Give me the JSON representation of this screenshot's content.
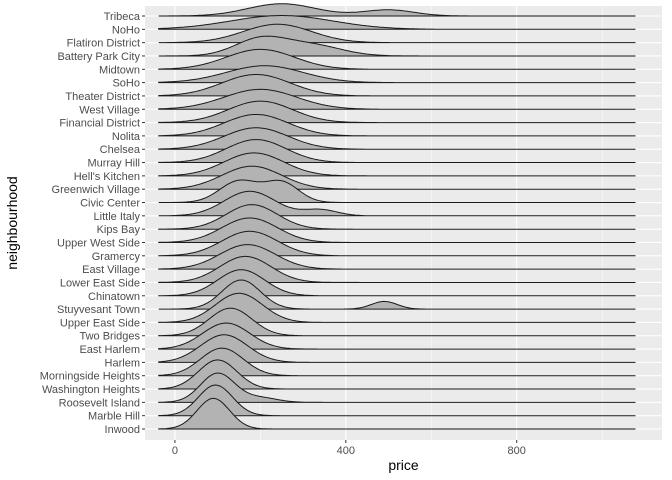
{
  "chart_data": {
    "type": "ridgeline",
    "xlabel": "price",
    "ylabel": "neighbourhood",
    "xlim": [
      -70,
      1140
    ],
    "x_ticks": [
      0,
      400,
      800
    ],
    "x_tick_labels": [
      "0",
      "400",
      "800"
    ],
    "grid": true,
    "theme": "grey panel, white gridlines",
    "fill_color": "#b3b3b3",
    "line_color": "#1a1a1a",
    "panel_color": "#ebebeb",
    "categories": [
      "Inwood",
      "Marble Hill",
      "Roosevelt Island",
      "Washington Heights",
      "Morningside Heights",
      "Harlem",
      "East Harlem",
      "Two Bridges",
      "Upper East Side",
      "Stuyvesant Town",
      "Chinatown",
      "Lower East Side",
      "East Village",
      "Gramercy",
      "Upper West Side",
      "Kips Bay",
      "Little Italy",
      "Civic Center",
      "Greenwich Village",
      "Hell's Kitchen",
      "Murray Hill",
      "Chelsea",
      "Nolita",
      "Financial District",
      "West Village",
      "Theater District",
      "SoHo",
      "Midtown",
      "Battery Park City",
      "Flatiron District",
      "NoHo",
      "Tribeca"
    ],
    "series": [
      {
        "name": "Inwood",
        "density": [
          {
            "mode": 90,
            "sd": 38,
            "h": 1.0
          }
        ]
      },
      {
        "name": "Marble Hill",
        "density": [
          {
            "mode": 95,
            "sd": 40,
            "h": 1.0
          }
        ]
      },
      {
        "name": "Roosevelt Island",
        "density": [
          {
            "mode": 100,
            "sd": 40,
            "h": 0.95
          },
          {
            "mode": 200,
            "sd": 40,
            "h": 0.15
          }
        ]
      },
      {
        "name": "Washington Heights",
        "density": [
          {
            "mode": 100,
            "sd": 45,
            "h": 0.95
          }
        ]
      },
      {
        "name": "Morningside Heights",
        "density": [
          {
            "mode": 110,
            "sd": 50,
            "h": 0.9
          }
        ]
      },
      {
        "name": "Harlem",
        "density": [
          {
            "mode": 115,
            "sd": 55,
            "h": 0.9
          }
        ]
      },
      {
        "name": "East Harlem",
        "density": [
          {
            "mode": 120,
            "sd": 55,
            "h": 0.85
          }
        ]
      },
      {
        "name": "Two Bridges",
        "density": [
          {
            "mode": 130,
            "sd": 50,
            "h": 0.9
          }
        ]
      },
      {
        "name": "Upper East Side",
        "density": [
          {
            "mode": 150,
            "sd": 55,
            "h": 0.95
          }
        ]
      },
      {
        "name": "Stuyvesant Town",
        "density": [
          {
            "mode": 155,
            "sd": 45,
            "h": 0.95
          },
          {
            "mode": 490,
            "sd": 30,
            "h": 0.25
          }
        ]
      },
      {
        "name": "Chinatown",
        "density": [
          {
            "mode": 155,
            "sd": 55,
            "h": 0.85
          }
        ]
      },
      {
        "name": "Lower East Side",
        "density": [
          {
            "mode": 165,
            "sd": 60,
            "h": 0.85
          }
        ]
      },
      {
        "name": "East Village",
        "density": [
          {
            "mode": 170,
            "sd": 65,
            "h": 0.8
          }
        ]
      },
      {
        "name": "Gramercy",
        "density": [
          {
            "mode": 175,
            "sd": 65,
            "h": 0.8
          }
        ]
      },
      {
        "name": "Upper West Side",
        "density": [
          {
            "mode": 175,
            "sd": 65,
            "h": 0.8
          }
        ]
      },
      {
        "name": "Kips Bay",
        "density": [
          {
            "mode": 180,
            "sd": 60,
            "h": 0.8
          }
        ]
      },
      {
        "name": "Little Italy",
        "density": [
          {
            "mode": 175,
            "sd": 60,
            "h": 0.8
          },
          {
            "mode": 340,
            "sd": 40,
            "h": 0.2
          }
        ]
      },
      {
        "name": "Civic Center",
        "density": [
          {
            "mode": 150,
            "sd": 45,
            "h": 0.7
          },
          {
            "mode": 250,
            "sd": 40,
            "h": 0.65
          }
        ]
      },
      {
        "name": "Greenwich Village",
        "density": [
          {
            "mode": 180,
            "sd": 70,
            "h": 0.75
          }
        ]
      },
      {
        "name": "Hell's Kitchen",
        "density": [
          {
            "mode": 185,
            "sd": 70,
            "h": 0.75
          }
        ]
      },
      {
        "name": "Murray Hill",
        "density": [
          {
            "mode": 190,
            "sd": 70,
            "h": 0.75
          }
        ]
      },
      {
        "name": "Chelsea",
        "density": [
          {
            "mode": 190,
            "sd": 75,
            "h": 0.7
          }
        ]
      },
      {
        "name": "Nolita",
        "density": [
          {
            "mode": 190,
            "sd": 75,
            "h": 0.7
          }
        ]
      },
      {
        "name": "Financial District",
        "density": [
          {
            "mode": 200,
            "sd": 75,
            "h": 0.7
          }
        ]
      },
      {
        "name": "West Village",
        "density": [
          {
            "mode": 200,
            "sd": 85,
            "h": 0.65
          }
        ]
      },
      {
        "name": "Theater District",
        "density": [
          {
            "mode": 190,
            "sd": 80,
            "h": 0.7
          }
        ]
      },
      {
        "name": "SoHo",
        "density": [
          {
            "mode": 210,
            "sd": 90,
            "h": 0.55
          }
        ]
      },
      {
        "name": "Midtown",
        "density": [
          {
            "mode": 200,
            "sd": 80,
            "h": 0.65
          }
        ]
      },
      {
        "name": "Battery Park City",
        "density": [
          {
            "mode": 200,
            "sd": 60,
            "h": 0.55
          },
          {
            "mode": 320,
            "sd": 70,
            "h": 0.35
          }
        ]
      },
      {
        "name": "Flatiron District",
        "density": [
          {
            "mode": 240,
            "sd": 80,
            "h": 0.6
          }
        ]
      },
      {
        "name": "NoHo",
        "density": [
          {
            "mode": 250,
            "sd": 120,
            "h": 0.45
          }
        ]
      },
      {
        "name": "Tribeca",
        "density": [
          {
            "mode": 250,
            "sd": 80,
            "h": 0.4
          },
          {
            "mode": 500,
            "sd": 60,
            "h": 0.2
          }
        ]
      }
    ]
  }
}
